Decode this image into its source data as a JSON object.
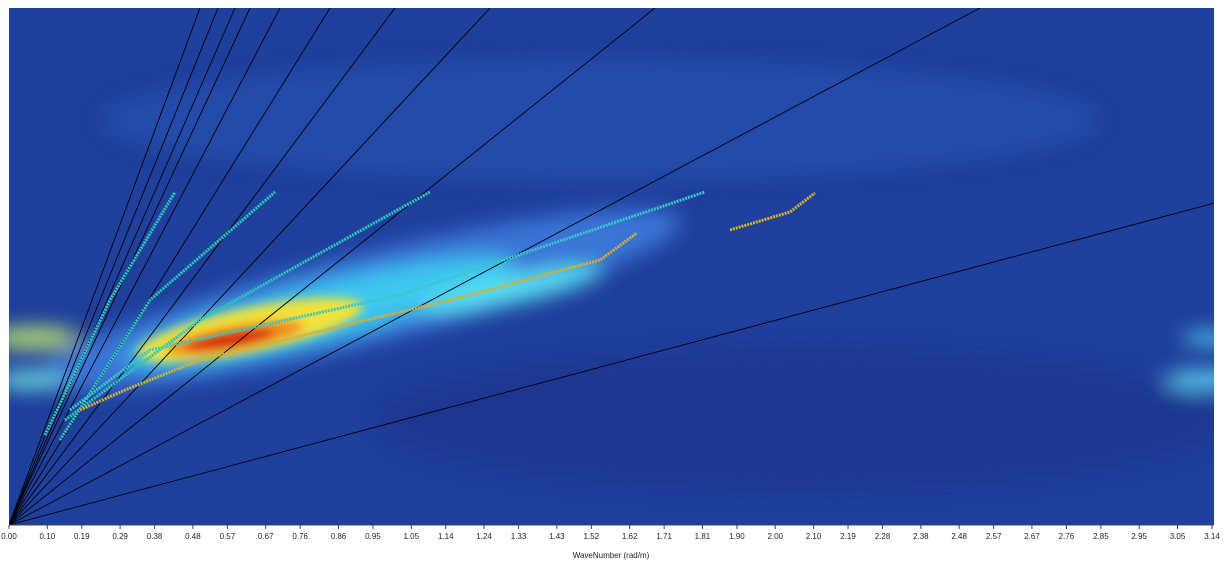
{
  "chart_data": {
    "type": "dispersion-image",
    "x_label": "WaveNumber (rad/m)",
    "xlim": [
      0,
      3.14
    ],
    "xticks": [
      {
        "value": 0,
        "label": "0.00"
      },
      {
        "value": 0.1,
        "label": "0.10"
      },
      0.19,
      0.29,
      0.38,
      0.48,
      0.57,
      0.67,
      0.76,
      0.86,
      0.95,
      1.05,
      1.14,
      1.24,
      1.33,
      1.43,
      1.52,
      1.62,
      1.71,
      1.81,
      {
        "value": 1.9,
        "label": "1.90"
      },
      {
        "value": 2,
        "label": "2.00"
      },
      {
        "value": 2.1,
        "label": "2.10"
      },
      2.19,
      2.28,
      2.38,
      2.48,
      2.57,
      2.67,
      2.76,
      2.85,
      2.95,
      3.05,
      3.14
    ]
  }
}
